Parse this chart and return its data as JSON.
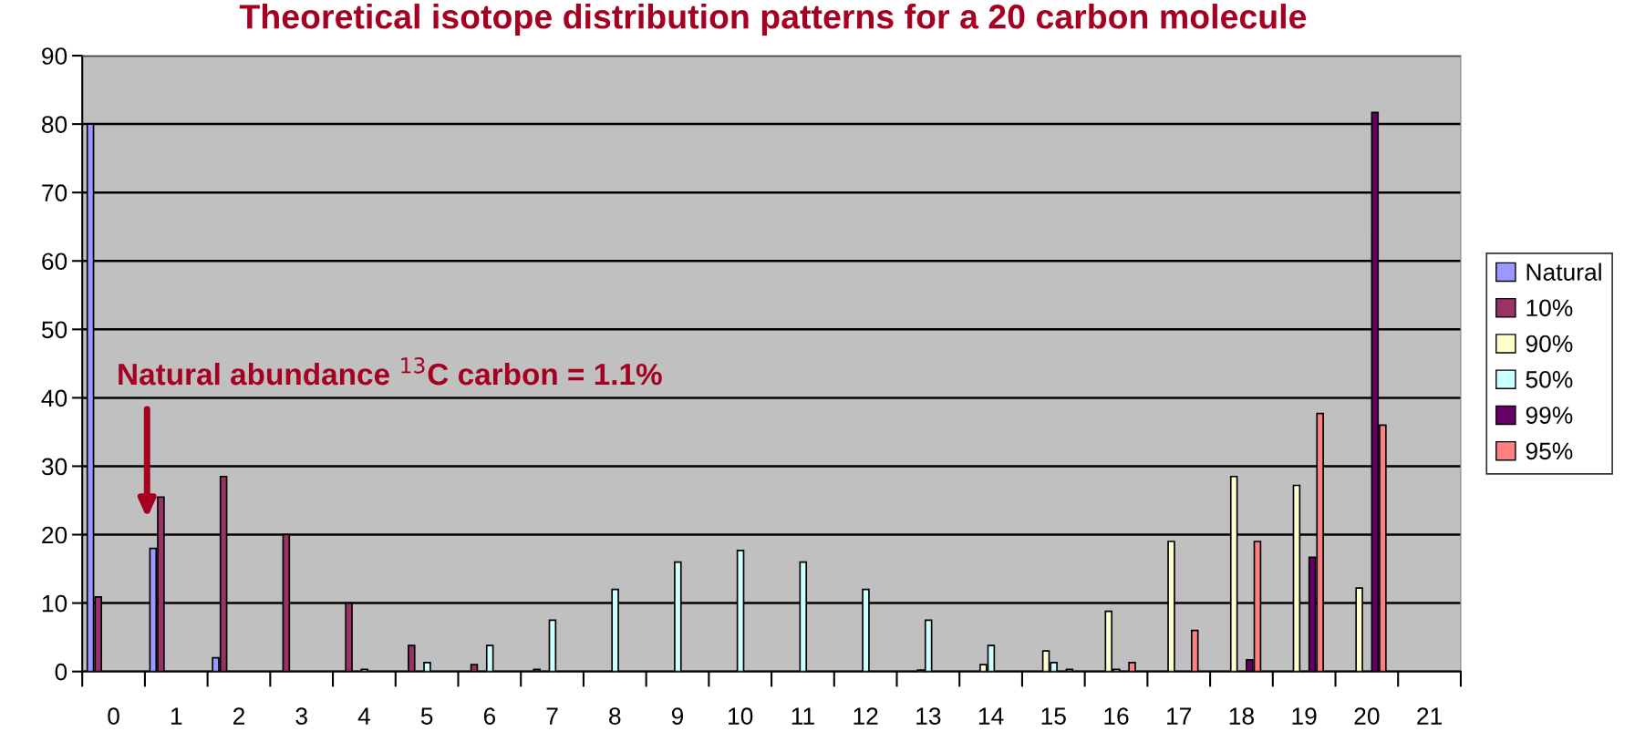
{
  "chart_data": {
    "type": "bar",
    "title": "Theoretical isotope distribution patterns for a 20 carbon molecule",
    "categories": [
      "0",
      "1",
      "2",
      "3",
      "4",
      "5",
      "6",
      "7",
      "8",
      "9",
      "10",
      "11",
      "12",
      "13",
      "14",
      "15",
      "16",
      "17",
      "18",
      "19",
      "20",
      "21"
    ],
    "series": [
      {
        "name": "Natural",
        "color": "#9999ff",
        "values": [
          80,
          18,
          2,
          null,
          null,
          null,
          null,
          null,
          null,
          null,
          null,
          null,
          null,
          null,
          null,
          null,
          null,
          null,
          null,
          null,
          null,
          null
        ]
      },
      {
        "name": "10%",
        "color": "#993366",
        "values": [
          10.9,
          25.5,
          28.5,
          20,
          10,
          3.8,
          1,
          0.3,
          null,
          null,
          null,
          null,
          null,
          null,
          null,
          null,
          null,
          null,
          null,
          null,
          null,
          null
        ]
      },
      {
        "name": "90%",
        "color": "#ffffcc",
        "values": [
          null,
          null,
          null,
          null,
          null,
          null,
          null,
          null,
          null,
          null,
          null,
          null,
          null,
          0.2,
          1,
          3,
          8.8,
          19,
          28.5,
          27.2,
          12.2,
          null
        ]
      },
      {
        "name": "50%",
        "color": "#ccffff",
        "values": [
          null,
          null,
          null,
          null,
          0.3,
          1.3,
          3.8,
          7.5,
          12,
          16,
          17.7,
          16,
          12,
          7.5,
          3.8,
          1.3,
          0.3,
          null,
          null,
          null,
          null,
          null
        ]
      },
      {
        "name": "99%",
        "color": "#660066",
        "values": [
          null,
          null,
          null,
          null,
          null,
          null,
          null,
          null,
          null,
          null,
          null,
          null,
          null,
          null,
          null,
          null,
          null,
          null,
          1.7,
          16.7,
          81.7,
          null
        ]
      },
      {
        "name": "95%",
        "color": "#ff8080",
        "values": [
          null,
          null,
          null,
          null,
          null,
          null,
          null,
          null,
          null,
          null,
          null,
          null,
          null,
          null,
          null,
          0.3,
          1.3,
          6,
          19,
          37.7,
          36,
          null
        ]
      }
    ],
    "ylim": [
      0,
      90
    ],
    "yticks": [
      0,
      10,
      20,
      30,
      40,
      50,
      60,
      70,
      80,
      90
    ],
    "grid": "y",
    "legend": "right",
    "annotations": [
      "Natural abundance $^{13}$C carbon = 1.1%"
    ]
  }
}
